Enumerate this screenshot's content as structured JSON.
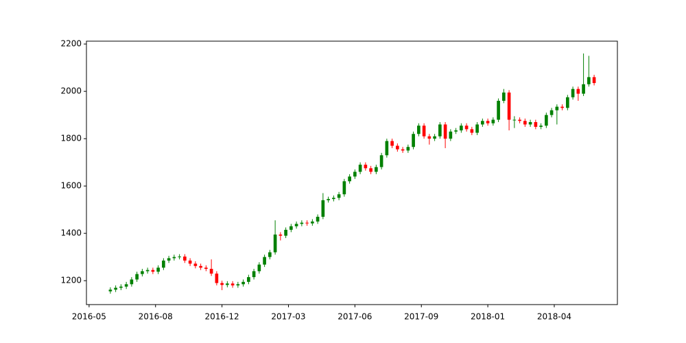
{
  "chart_data": {
    "type": "candlestick",
    "x": [
      32,
      40,
      48,
      56,
      64,
      72,
      80,
      88,
      96,
      104,
      112,
      120,
      128,
      136,
      144,
      152,
      160,
      168,
      176,
      184,
      192,
      200,
      208,
      216,
      224,
      232,
      240,
      248,
      256,
      264,
      272,
      280,
      288,
      296,
      304,
      312,
      320,
      328,
      336,
      344,
      352,
      360,
      368,
      376,
      384,
      392,
      400,
      408,
      416,
      424,
      432,
      440,
      448,
      456,
      464,
      472,
      480,
      488,
      496,
      504,
      512,
      520,
      528,
      536,
      544,
      552,
      560,
      568,
      576,
      584,
      592,
      600,
      608,
      616,
      624,
      632,
      640,
      648,
      656,
      664,
      672,
      680,
      688,
      696,
      704,
      712,
      720,
      728,
      736,
      744,
      752,
      760
    ],
    "open": [
      1155,
      1162,
      1170,
      1175,
      1185,
      1205,
      1228,
      1240,
      1245,
      1238,
      1255,
      1285,
      1295,
      1300,
      1302,
      1285,
      1272,
      1262,
      1255,
      1250,
      1230,
      1190,
      1182,
      1188,
      1180,
      1185,
      1195,
      1215,
      1240,
      1268,
      1300,
      1320,
      1395,
      1390,
      1415,
      1430,
      1440,
      1445,
      1442,
      1450,
      1470,
      1540,
      1545,
      1550,
      1565,
      1620,
      1640,
      1660,
      1690,
      1675,
      1660,
      1680,
      1730,
      1790,
      1770,
      1755,
      1750,
      1765,
      1820,
      1855,
      1810,
      1800,
      1810,
      1860,
      1800,
      1830,
      1835,
      1855,
      1840,
      1825,
      1860,
      1875,
      1865,
      1880,
      1960,
      1995,
      1880,
      1880,
      1875,
      1860,
      1870,
      1850,
      1855,
      1900,
      1920,
      1935,
      1930,
      1975,
      2010,
      1990,
      2030,
      2060
    ],
    "high": [
      1172,
      1180,
      1185,
      1195,
      1215,
      1238,
      1250,
      1255,
      1255,
      1265,
      1295,
      1305,
      1310,
      1312,
      1312,
      1295,
      1282,
      1272,
      1265,
      1290,
      1240,
      1200,
      1198,
      1198,
      1195,
      1205,
      1225,
      1250,
      1278,
      1310,
      1330,
      1455,
      1405,
      1425,
      1440,
      1450,
      1455,
      1455,
      1460,
      1480,
      1570,
      1555,
      1560,
      1575,
      1630,
      1650,
      1670,
      1700,
      1700,
      1685,
      1690,
      1740,
      1800,
      1800,
      1780,
      1765,
      1775,
      1830,
      1865,
      1865,
      1820,
      1820,
      1870,
      1870,
      1840,
      1845,
      1865,
      1865,
      1850,
      1870,
      1885,
      1885,
      1890,
      1970,
      2010,
      2005,
      1895,
      1890,
      1885,
      1880,
      1880,
      1865,
      1910,
      1930,
      1945,
      1945,
      1985,
      2020,
      2020,
      2160,
      2150,
      2070
    ],
    "low": [
      1145,
      1152,
      1160,
      1165,
      1175,
      1195,
      1218,
      1230,
      1228,
      1228,
      1245,
      1275,
      1285,
      1290,
      1275,
      1262,
      1252,
      1245,
      1240,
      1220,
      1180,
      1160,
      1172,
      1170,
      1170,
      1175,
      1185,
      1205,
      1230,
      1258,
      1290,
      1310,
      1370,
      1380,
      1405,
      1420,
      1430,
      1432,
      1432,
      1440,
      1460,
      1530,
      1535,
      1540,
      1555,
      1610,
      1630,
      1650,
      1665,
      1650,
      1650,
      1670,
      1720,
      1760,
      1745,
      1740,
      1740,
      1755,
      1810,
      1800,
      1775,
      1790,
      1800,
      1760,
      1790,
      1820,
      1825,
      1830,
      1815,
      1815,
      1850,
      1855,
      1855,
      1870,
      1950,
      1835,
      1845,
      1865,
      1850,
      1850,
      1840,
      1840,
      1845,
      1890,
      1860,
      1920,
      1920,
      1965,
      1960,
      1980,
      2020,
      2025
    ],
    "close": [
      1162,
      1170,
      1175,
      1185,
      1205,
      1228,
      1240,
      1245,
      1238,
      1255,
      1285,
      1295,
      1300,
      1302,
      1285,
      1272,
      1262,
      1255,
      1250,
      1230,
      1190,
      1182,
      1188,
      1180,
      1185,
      1195,
      1215,
      1240,
      1268,
      1300,
      1320,
      1395,
      1390,
      1415,
      1430,
      1440,
      1445,
      1442,
      1450,
      1470,
      1540,
      1545,
      1550,
      1565,
      1620,
      1640,
      1660,
      1690,
      1675,
      1660,
      1680,
      1730,
      1790,
      1770,
      1755,
      1750,
      1765,
      1820,
      1855,
      1810,
      1800,
      1810,
      1860,
      1800,
      1830,
      1835,
      1855,
      1840,
      1825,
      1860,
      1875,
      1865,
      1880,
      1960,
      1995,
      1880,
      1880,
      1875,
      1860,
      1870,
      1850,
      1855,
      1900,
      1920,
      1935,
      1930,
      1975,
      2010,
      1990,
      2030,
      2060,
      2035
    ],
    "up_color": "#008000",
    "down_color": "#ff0000",
    "xlim": [
      -4,
      795
    ],
    "xticks": [
      {
        "value": 0,
        "label": "2016-05"
      },
      {
        "value": 100,
        "label": "2016-08"
      },
      {
        "value": 200,
        "label": "2016-12"
      },
      {
        "value": 300,
        "label": "2017-03"
      },
      {
        "value": 400,
        "label": "2017-06"
      },
      {
        "value": 500,
        "label": "2017-09"
      },
      {
        "value": 600,
        "label": "2018-01"
      },
      {
        "value": 700,
        "label": "2018-04"
      }
    ],
    "ylim": [
      1099,
      2212
    ],
    "yticks": [
      1200,
      1400,
      1600,
      1800,
      2000,
      2200
    ]
  }
}
